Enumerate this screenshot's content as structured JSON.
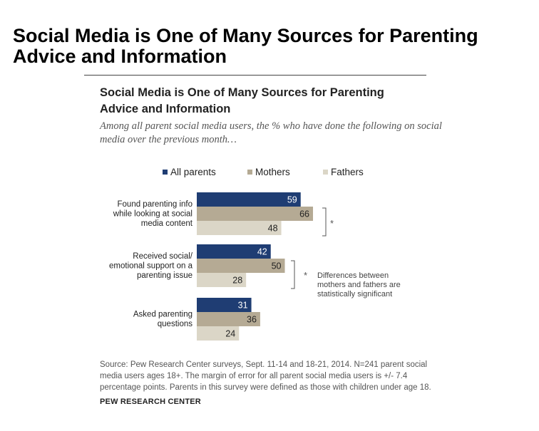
{
  "page_title": "Social Media is One of Many Sources for Parenting Advice and Information",
  "card": {
    "title": "Social Media is One of Many Sources for Parenting Advice and Information",
    "subtitle": "Among all parent social media users, the % who have done the following on social media over the previous month…"
  },
  "chart_data": {
    "type": "bar",
    "orientation": "horizontal",
    "categories": [
      "Found parenting info while looking at social media content",
      "Received social/ emotional support on a parenting issue",
      "Asked parenting questions"
    ],
    "category_lines": [
      [
        "Found parenting info",
        "while looking at social",
        "media content"
      ],
      [
        "Received social/",
        "emotional support on a",
        "parenting issue"
      ],
      [
        "Asked parenting",
        "questions"
      ]
    ],
    "series": [
      {
        "name": "All parents",
        "values": [
          59,
          42,
          31
        ],
        "color": "#1f3d73"
      },
      {
        "name": "Mothers",
        "values": [
          66,
          50,
          36
        ],
        "color": "#b5aa94"
      },
      {
        "name": "Fathers",
        "values": [
          48,
          28,
          24
        ],
        "color": "#dbd6c7"
      }
    ],
    "xlim": [
      0,
      100
    ],
    "data_labels": true,
    "legend_position": "top",
    "grid": false,
    "annotations": {
      "marker": "*",
      "note": "Differences between mothers and fathers are statistically significant",
      "note_lines": [
        "Differences between",
        "mothers and fathers are",
        "statistically significant"
      ]
    }
  },
  "footer": {
    "source": "Source: Pew Research Center surveys, Sept. 11-14 and 18-21, 2014. N=241 parent social media users ages 18+. The margin of error for all parent social media users is +/- 7.4 percentage points. Parents in this survey were defined as those with children under age 18.",
    "brand": "PEW RESEARCH CENTER"
  }
}
